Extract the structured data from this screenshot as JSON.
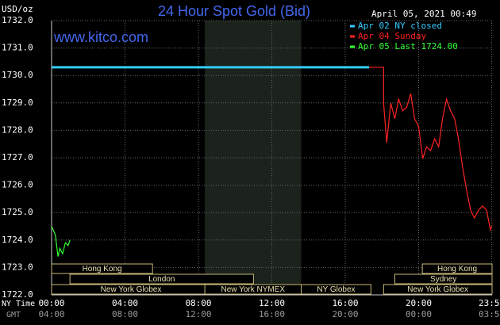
{
  "chart_data": {
    "type": "line",
    "title": "24 Hour Spot Gold (Bid)",
    "y_unit": "USD/oz",
    "timestamp": "April 05, 2021 00:49",
    "website": "www.kitco.com",
    "x_row_label": "NY Time",
    "x2_row_label": "GMT",
    "xlim": [
      0,
      24
    ],
    "ylim": [
      1722,
      1732
    ],
    "xticks": [
      {
        "value": 0,
        "label": "00:00"
      },
      {
        "value": 4,
        "label": "04:00"
      },
      {
        "value": 8,
        "label": "08:00"
      },
      {
        "value": 12,
        "label": "12:00"
      },
      {
        "value": 16,
        "label": "16:00"
      },
      {
        "value": 20,
        "label": "20:00"
      },
      {
        "value": 23.98,
        "label": "23:59"
      }
    ],
    "x2_labels": [
      "04:00",
      "08:00",
      "12:00",
      "16:00",
      "20:00",
      "00:00",
      "03:59"
    ],
    "yticks": [
      {
        "value": 1722,
        "label": "1722.0"
      },
      {
        "value": 1723,
        "label": "1723.0"
      },
      {
        "value": 1724,
        "label": "1724.0"
      },
      {
        "value": 1725,
        "label": "1725.0"
      },
      {
        "value": 1726,
        "label": "1726.0"
      },
      {
        "value": 1727,
        "label": "1727.0"
      },
      {
        "value": 1728,
        "label": "1728.0"
      },
      {
        "value": 1729,
        "label": "1729.0"
      },
      {
        "value": 1730,
        "label": "1730.0"
      },
      {
        "value": 1731,
        "label": "1731.0"
      },
      {
        "value": 1732,
        "label": "1732.0"
      }
    ],
    "grid": true,
    "highlight": {
      "from": 8.35,
      "to": 13.6
    },
    "series": [
      {
        "name": "Apr 02 NY closed",
        "color": "#33ccff",
        "x": [
          0,
          17.3
        ],
        "values": [
          1730.3,
          1730.3
        ]
      },
      {
        "name": "Apr 04 Sunday",
        "color": "#ff2222",
        "x": [
          17.3,
          18.09,
          18.09,
          18.26,
          18.48,
          18.7,
          18.91,
          19.13,
          19.35,
          19.57,
          19.78,
          20.0,
          20.22,
          20.43,
          20.65,
          20.87,
          21.09,
          21.3,
          21.52,
          21.74,
          21.96,
          22.17,
          22.39,
          22.61,
          22.83,
          23.04,
          23.26,
          23.48,
          23.7,
          23.91,
          23.98
        ],
        "values": [
          1730.3,
          1730.3,
          1728.99,
          1727.55,
          1728.99,
          1728.42,
          1729.14,
          1728.71,
          1728.85,
          1729.34,
          1728.42,
          1728.13,
          1726.97,
          1727.4,
          1727.26,
          1727.69,
          1727.4,
          1728.42,
          1729.14,
          1728.71,
          1728.42,
          1727.69,
          1726.68,
          1725.82,
          1725.09,
          1724.8,
          1725.09,
          1725.24,
          1725.09,
          1724.37,
          1724.51
        ]
      },
      {
        "name": "Apr 05 Last 1724.00",
        "color": "#33ff33",
        "x": [
          0,
          0.2,
          0.35,
          0.45,
          0.6,
          0.75,
          0.9,
          1.0
        ],
        "values": [
          1724.5,
          1724.2,
          1723.4,
          1723.7,
          1723.5,
          1723.9,
          1723.8,
          1724.0
        ]
      }
    ],
    "sessions": [
      {
        "label": "Hong Kong",
        "from": 0,
        "to": 5.5
      },
      {
        "label": "London",
        "from": 1,
        "to": 11
      },
      {
        "label": "New York Globex",
        "from": 0,
        "to": 8.65
      },
      {
        "label": "New York NYMEX",
        "from": 8.35,
        "to": 13.6
      },
      {
        "label": "NY Globex",
        "from": 13.6,
        "to": 17.4
      },
      {
        "label": "Hong Kong",
        "from": 20.2,
        "to": 24
      },
      {
        "label": "Sydney",
        "from": 18.7,
        "to": 24
      },
      {
        "label": "New York Globex",
        "from": 18.09,
        "to": 24
      }
    ]
  }
}
